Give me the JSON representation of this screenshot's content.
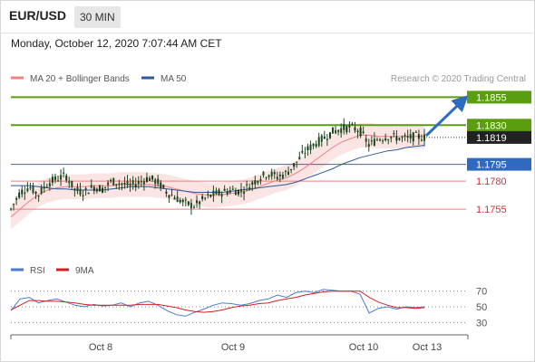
{
  "header": {
    "symbol": "EUR/USD",
    "timeframe": "30 MIN"
  },
  "datetime": "Monday, October 12, 2020 7:07:44 AM CET",
  "credit": "Research © 2020 Trading Central",
  "legend": [
    {
      "label": "MA 20 + Bollinger Bands",
      "color": "#f08080"
    },
    {
      "label": "MA 50",
      "color": "#2d5a9a"
    }
  ],
  "rsi_legend": [
    {
      "label": "RSI",
      "color": "#4a7bd0"
    },
    {
      "label": "9MA",
      "color": "#d42020"
    }
  ],
  "colors": {
    "green": "#5a9e10",
    "blue": "#2f6ac0",
    "red": "#e88080",
    "dark": "#222222",
    "candle": "#1f4a1f"
  },
  "chart_data": [
    {
      "type": "candlestick",
      "x_labels": [
        "Oct 8",
        "Oct 9",
        "Oct 10",
        "Oct 13"
      ],
      "ylim": [
        1.173,
        1.1865
      ],
      "levels": [
        {
          "value": 1.1855,
          "label": "1.1855",
          "kind": "resistance",
          "color": "#5a9e10"
        },
        {
          "value": 1.183,
          "label": "1.1830",
          "kind": "resistance",
          "color": "#5a9e10"
        },
        {
          "value": 1.1819,
          "label": "1.1819",
          "kind": "last-price",
          "color": "#222222"
        },
        {
          "value": 1.1795,
          "label": "1.1795",
          "kind": "pivot",
          "color": "#2f6ac0"
        },
        {
          "value": 1.178,
          "label": "1.1780",
          "kind": "support",
          "color": "#e88080"
        },
        {
          "value": 1.1755,
          "label": "1.1755",
          "kind": "support",
          "color": "#e88080"
        }
      ],
      "price_path": [
        1.1755,
        1.177,
        1.1775,
        1.1768,
        1.1778,
        1.1782,
        1.1785,
        1.1772,
        1.177,
        1.1775,
        1.1773,
        1.178,
        1.1778,
        1.1776,
        1.1779,
        1.1783,
        1.1779,
        1.177,
        1.1765,
        1.176,
        1.1758,
        1.1764,
        1.1768,
        1.177,
        1.1772,
        1.1771,
        1.1776,
        1.1783,
        1.1787,
        1.1784,
        1.1787,
        1.1796,
        1.1806,
        1.1813,
        1.1818,
        1.1824,
        1.1827,
        1.1828,
        1.1825,
        1.1812,
        1.1818,
        1.182,
        1.1819,
        1.1818,
        1.182,
        1.1819
      ],
      "ma20_path": [
        1.1748,
        1.1755,
        1.1762,
        1.1768,
        1.1772,
        1.1774,
        1.1775,
        1.1775,
        1.1775,
        1.1776,
        1.1776,
        1.1776,
        1.1777,
        1.1777,
        1.1777,
        1.1777,
        1.1776,
        1.1775,
        1.1773,
        1.1771,
        1.1769,
        1.1768,
        1.1767,
        1.1768,
        1.1769,
        1.177,
        1.1772,
        1.1775,
        1.1778,
        1.1781,
        1.1783,
        1.1787,
        1.1792,
        1.1798,
        1.1804,
        1.181,
        1.1815,
        1.1818,
        1.1821,
        1.1821,
        1.182,
        1.182,
        1.182,
        1.182,
        1.182,
        1.182
      ],
      "ma50_path": [
        1.1776,
        1.1776,
        1.1776,
        1.1775,
        1.1774,
        1.1773,
        1.1773,
        1.1772,
        1.1772,
        1.1772,
        1.1772,
        1.1773,
        1.1774,
        1.1775,
        1.1775,
        1.1775,
        1.1774,
        1.1773,
        1.1772,
        1.1771,
        1.177,
        1.177,
        1.177,
        1.177,
        1.1771,
        1.1772,
        1.1773,
        1.1774,
        1.1775,
        1.1776,
        1.1777,
        1.1779,
        1.1782,
        1.1785,
        1.1788,
        1.1791,
        1.1795,
        1.1798,
        1.1801,
        1.1803,
        1.1805,
        1.1807,
        1.1808,
        1.181,
        1.1811,
        1.1812
      ],
      "band_width": 0.0011,
      "forecast_target": 1.1855
    },
    {
      "type": "line",
      "name": "RSI",
      "ylim": [
        20,
        80
      ],
      "ticks": [
        70,
        50,
        30
      ],
      "rsi": [
        45,
        60,
        62,
        55,
        58,
        60,
        56,
        52,
        50,
        53,
        51,
        52,
        55,
        50,
        55,
        57,
        52,
        45,
        40,
        38,
        43,
        47,
        52,
        55,
        54,
        52,
        54,
        58,
        60,
        65,
        62,
        68,
        70,
        68,
        72,
        71,
        70,
        70,
        66,
        42,
        48,
        50,
        47,
        50,
        49,
        50
      ],
      "ma9": [
        46,
        52,
        58,
        58,
        57,
        57,
        56,
        55,
        53,
        52,
        52,
        52,
        52,
        52,
        53,
        53,
        53,
        51,
        49,
        46,
        44,
        43,
        44,
        46,
        49,
        51,
        52,
        54,
        55,
        58,
        60,
        62,
        65,
        67,
        69,
        70,
        70,
        70,
        70,
        62,
        56,
        52,
        49,
        49,
        48,
        49
      ]
    }
  ]
}
